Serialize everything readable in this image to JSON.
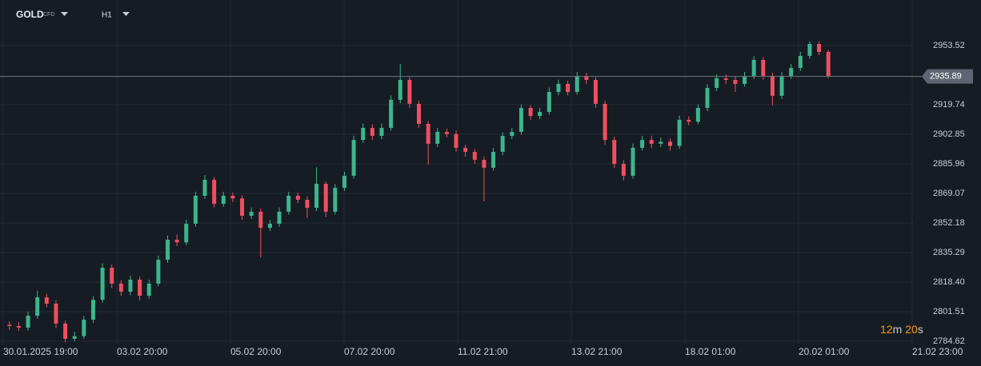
{
  "chart_data": {
    "type": "candlestick",
    "symbol": "GOLD",
    "symbol_tag": "CFD",
    "timeframe": "H1",
    "ylim": [
      2783.25,
      2979.54
    ],
    "yticks": [
      2953.52,
      2919.74,
      2902.85,
      2885.96,
      2869.07,
      2852.18,
      2835.29,
      {
        "value": 2818.4,
        "label": "2818.40"
      },
      2801.51,
      2784.62
    ],
    "current_price": 2935.89,
    "x_labels": [
      "30.01.2025 19:00",
      "03.02 20:00",
      "05.02 20:00",
      "07.02 20:00",
      "11.02 21:00",
      "13.02 21:00",
      "18.02 01:00",
      "20.02 01:00",
      "21.02 23:00"
    ],
    "countdown": {
      "minutes": "12",
      "minutes_unit": "m",
      "seconds": "20",
      "seconds_unit": "s"
    },
    "up_color": "#3cb58c",
    "down_color": "#ef4f5f",
    "grid": true,
    "open": [
      2794.0,
      2793.3,
      2792.4,
      2799.2,
      2809.7,
      2806.1,
      2794.7,
      2786.0,
      2787.5,
      2796.9,
      2808.3,
      2826.6,
      2817.5,
      2812.9,
      2819.8,
      2810.6,
      2817.5,
      2831.2,
      2842.6,
      2841.1,
      2851.7,
      2867.7,
      2876.8,
      2863.1,
      2867.7,
      2866.2,
      2856.3,
      2858.6,
      2849.4,
      2851.7,
      2858.6,
      2867.7,
      2865.4,
      2860.8,
      2874.5,
      2858.6,
      2872.2,
      2879.1,
      2899.6,
      2906.5,
      2901.9,
      2906.5,
      2922.5,
      2933.9,
      2920.2,
      2908.8,
      2897.4,
      2904.2,
      2903.0,
      2895.1,
      2892.8,
      2888.2,
      2883.7,
      2892.8,
      2901.9,
      2904.2,
      2917.9,
      2913.3,
      2915.6,
      2927.0,
      2931.6,
      2927.0,
      2936.2,
      2933.9,
      2920.2,
      2899.6,
      2885.9,
      2879.1,
      2895.1,
      2899.6,
      2897.4,
      2898.6,
      2896.2,
      2911.1,
      2910.0,
      2917.9,
      2929.3,
      2934.8,
      2933.9,
      2931.6,
      2936.2,
      2945.3,
      2936.2,
      2924.8,
      2936.2,
      2940.7,
      2947.6,
      2954.4,
      2949.9
    ],
    "high": [
      2796.0,
      2795.5,
      2801.5,
      2813.5,
      2811.8,
      2808.0,
      2796.5,
      2790.0,
      2799.0,
      2810.5,
      2829.0,
      2828.5,
      2819.5,
      2822.0,
      2821.5,
      2819.8,
      2833.5,
      2845.0,
      2845.5,
      2854.0,
      2870.0,
      2879.5,
      2878.5,
      2870.0,
      2869.5,
      2868.0,
      2861.0,
      2860.5,
      2854.0,
      2861.0,
      2870.0,
      2869.5,
      2867.5,
      2884.0,
      2876.0,
      2874.5,
      2881.5,
      2902.0,
      2909.0,
      2908.5,
      2909.0,
      2925.0,
      2943.0,
      2935.5,
      2922.0,
      2910.5,
      2906.5,
      2906.0,
      2905.0,
      2897.0,
      2894.5,
      2890.0,
      2895.0,
      2904.0,
      2906.5,
      2920.0,
      2919.5,
      2918.0,
      2929.5,
      2934.0,
      2933.5,
      2938.5,
      2938.0,
      2935.5,
      2922.0,
      2901.5,
      2888.0,
      2897.5,
      2902.0,
      2902.0,
      2901.0,
      2900.5,
      2913.5,
      2913.0,
      2920.0,
      2931.5,
      2937.0,
      2937.0,
      2936.0,
      2938.5,
      2947.5,
      2947.0,
      2938.0,
      2938.5,
      2943.0,
      2950.0,
      2956.0,
      2956.0,
      2951.0
    ],
    "low": [
      2791.0,
      2790.5,
      2790.8,
      2797.5,
      2804.0,
      2792.0,
      2784.0,
      2784.5,
      2786.0,
      2795.0,
      2806.5,
      2815.0,
      2810.5,
      2811.0,
      2808.0,
      2809.0,
      2816.0,
      2829.5,
      2839.0,
      2839.5,
      2850.0,
      2866.0,
      2861.0,
      2861.5,
      2864.0,
      2854.0,
      2854.5,
      2832.5,
      2847.5,
      2850.0,
      2857.0,
      2863.5,
      2855.0,
      2859.0,
      2855.5,
      2857.0,
      2870.5,
      2877.5,
      2898.0,
      2899.5,
      2900.0,
      2905.0,
      2920.5,
      2918.0,
      2906.5,
      2885.5,
      2895.5,
      2901.0,
      2893.0,
      2890.0,
      2886.0,
      2864.5,
      2882.0,
      2891.0,
      2900.0,
      2902.5,
      2911.0,
      2911.5,
      2914.0,
      2925.0,
      2925.0,
      2925.5,
      2931.5,
      2918.0,
      2897.0,
      2883.5,
      2876.5,
      2877.5,
      2893.5,
      2895.0,
      2895.5,
      2893.5,
      2894.5,
      2908.0,
      2908.5,
      2916.0,
      2927.5,
      2931.5,
      2927.0,
      2930.0,
      2934.5,
      2934.0,
      2919.5,
      2923.0,
      2934.5,
      2939.0,
      2946.0,
      2948.0,
      2935.0
    ],
    "close": [
      2793.3,
      2792.4,
      2799.2,
      2809.7,
      2806.1,
      2794.7,
      2786.0,
      2787.5,
      2796.9,
      2808.3,
      2826.6,
      2817.5,
      2812.9,
      2819.8,
      2810.6,
      2817.5,
      2831.2,
      2842.6,
      2841.1,
      2851.7,
      2867.7,
      2876.8,
      2863.1,
      2867.7,
      2866.2,
      2856.3,
      2858.6,
      2849.4,
      2851.7,
      2858.6,
      2867.7,
      2865.4,
      2860.8,
      2874.5,
      2858.6,
      2872.2,
      2879.1,
      2899.6,
      2906.5,
      2901.9,
      2906.5,
      2922.5,
      2933.9,
      2920.2,
      2908.8,
      2897.4,
      2904.2,
      2903.0,
      2895.1,
      2892.8,
      2888.2,
      2883.7,
      2892.8,
      2901.9,
      2904.2,
      2917.9,
      2913.3,
      2915.6,
      2927.0,
      2931.6,
      2927.0,
      2936.2,
      2933.9,
      2920.2,
      2899.6,
      2885.9,
      2879.1,
      2895.1,
      2899.6,
      2897.4,
      2898.6,
      2896.2,
      2911.1,
      2910.0,
      2917.9,
      2929.3,
      2934.8,
      2933.9,
      2931.6,
      2936.2,
      2945.3,
      2936.2,
      2924.8,
      2936.2,
      2940.7,
      2947.6,
      2954.4,
      2949.9,
      2936.2
    ]
  }
}
